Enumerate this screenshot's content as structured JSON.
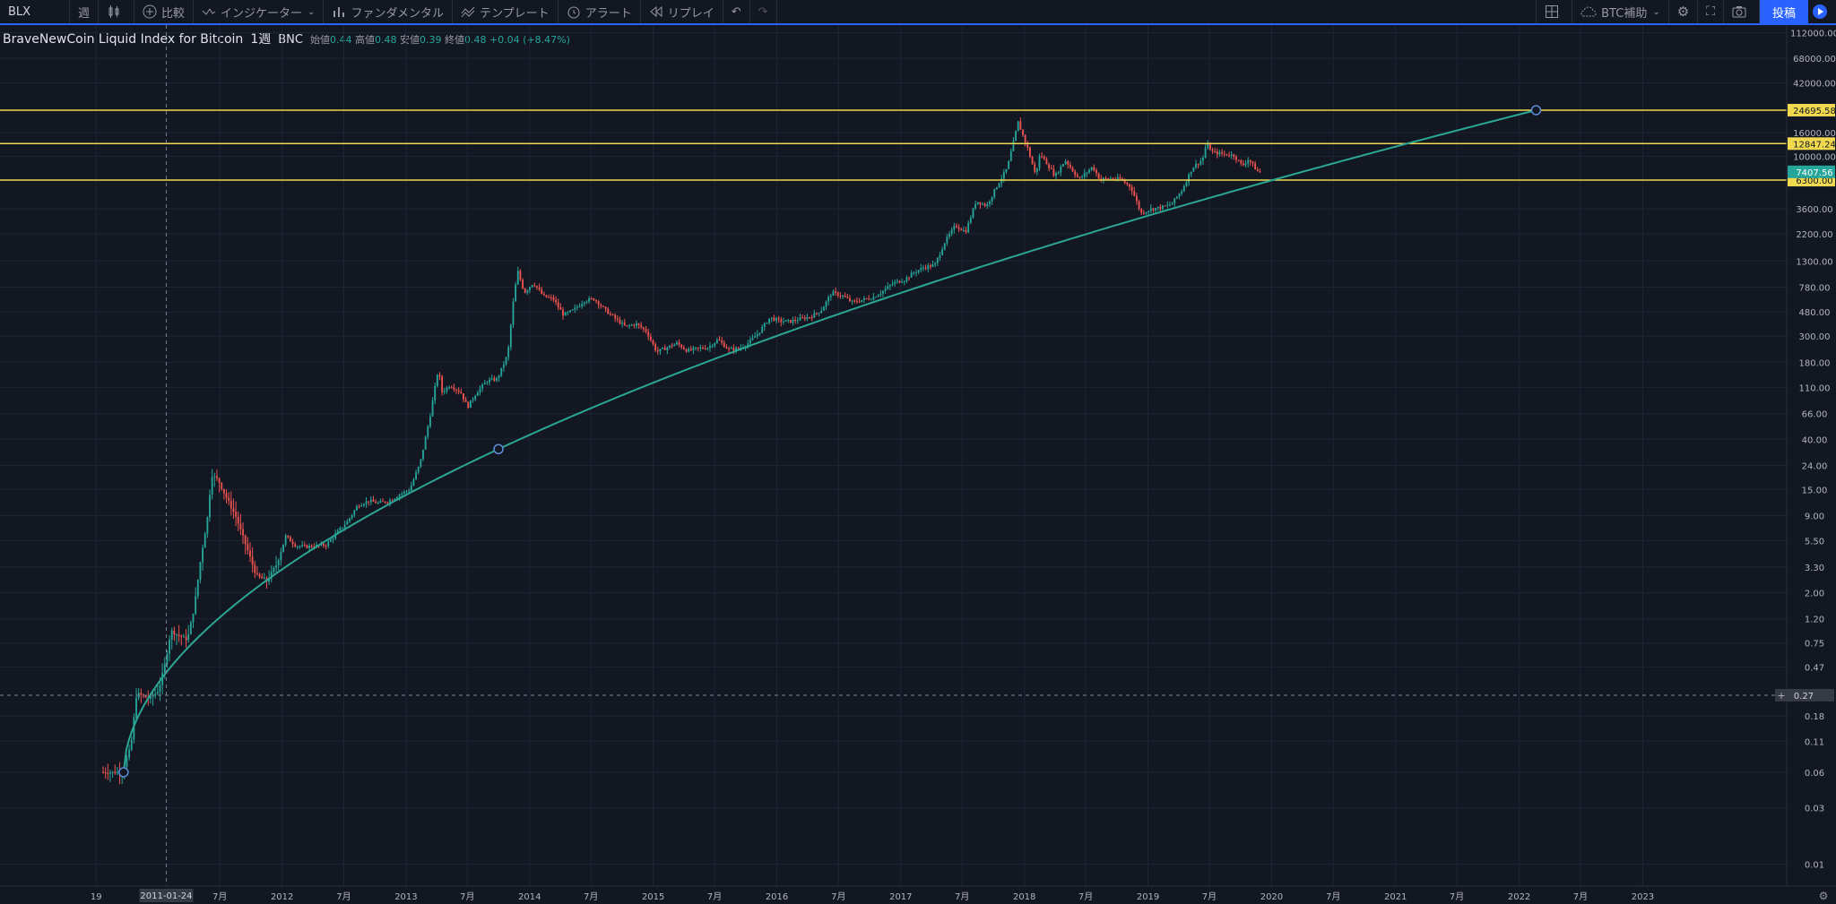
{
  "toolbar": {
    "symbol": "BLX",
    "interval": "週",
    "compare": "比較",
    "indicators": "インジケーター",
    "fundamentals": "ファンダメンタル",
    "templates": "テンプレート",
    "alert": "アラート",
    "replay": "リプレイ",
    "layout_name": "BTC補助",
    "post": "投稿"
  },
  "legend": {
    "title": "BraveNewCoin Liquid Index for Bitcoin",
    "interval": "1週",
    "exchange": "BNC",
    "open_label": "始値",
    "open": "0.44",
    "high_label": "高値",
    "high": "0.48",
    "low_label": "安値",
    "low": "0.39",
    "close_label": "終値",
    "close": "0.48",
    "change": "+0.04 (+8.47%)"
  },
  "colors": {
    "background": "#131722",
    "grid": "#1f2433",
    "up": "#26a69a",
    "down": "#ef5350",
    "trendline": "#2aa693",
    "hline": "#f0d94f",
    "accent": "#2962ff"
  },
  "chart_data": {
    "type": "candlestick",
    "y_scale": "log",
    "ylim": [
      0.0065,
      130000
    ],
    "xlim": [
      "2009-09-20",
      "2024-03-01"
    ],
    "price_axis_ticks": [
      "112000.00",
      "68000.00",
      "42000.00",
      "16000.00",
      "10000.00",
      "3600.00",
      "2200.00",
      "1300.00",
      "780.00",
      "480.00",
      "300.00",
      "180.00",
      "110.00",
      "66.00",
      "40.00",
      "24.00",
      "15.00",
      "9.00",
      "5.50",
      "3.30",
      "2.00",
      "1.20",
      "0.75",
      "0.47",
      "0.18",
      "0.11",
      "0.06",
      "0.03",
      "0.01"
    ],
    "time_axis_labels": [
      {
        "date": "2010-07-01",
        "label": "19"
      },
      {
        "date": "2011-07-01",
        "label": "7月"
      },
      {
        "date": "2012-01-01",
        "label": "2012"
      },
      {
        "date": "2012-07-01",
        "label": "7月"
      },
      {
        "date": "2013-01-01",
        "label": "2013"
      },
      {
        "date": "2013-07-01",
        "label": "7月"
      },
      {
        "date": "2014-01-01",
        "label": "2014"
      },
      {
        "date": "2014-07-01",
        "label": "7月"
      },
      {
        "date": "2015-01-01",
        "label": "2015"
      },
      {
        "date": "2015-07-01",
        "label": "7月"
      },
      {
        "date": "2016-01-01",
        "label": "2016"
      },
      {
        "date": "2016-07-01",
        "label": "7月"
      },
      {
        "date": "2017-01-01",
        "label": "2017"
      },
      {
        "date": "2017-07-01",
        "label": "7月"
      },
      {
        "date": "2018-01-01",
        "label": "2018"
      },
      {
        "date": "2018-07-01",
        "label": "7月"
      },
      {
        "date": "2019-01-01",
        "label": "2019"
      },
      {
        "date": "2019-07-01",
        "label": "7月"
      },
      {
        "date": "2020-01-01",
        "label": "2020"
      },
      {
        "date": "2020-07-01",
        "label": "7月"
      },
      {
        "date": "2021-01-01",
        "label": "2021"
      },
      {
        "date": "2021-07-01",
        "label": "7月"
      },
      {
        "date": "2022-01-01",
        "label": "2022"
      },
      {
        "date": "2022-07-01",
        "label": "7月"
      },
      {
        "date": "2023-01-01",
        "label": "2023"
      }
    ],
    "price_path": [
      [
        "2010-07-18",
        0.06
      ],
      [
        "2010-08-20",
        0.06
      ],
      [
        "2010-09-20",
        0.06
      ],
      [
        "2010-10-15",
        0.1
      ],
      [
        "2010-11-01",
        0.28
      ],
      [
        "2010-12-10",
        0.25
      ],
      [
        "2011-01-05",
        0.3
      ],
      [
        "2011-01-24",
        0.5
      ],
      [
        "2011-02-10",
        0.95
      ],
      [
        "2011-03-10",
        0.85
      ],
      [
        "2011-03-31",
        0.8
      ],
      [
        "2011-04-20",
        1.5
      ],
      [
        "2011-05-10",
        4.0
      ],
      [
        "2011-05-30",
        9.0
      ],
      [
        "2011-06-10",
        20.0
      ],
      [
        "2011-06-30",
        18.0
      ],
      [
        "2011-07-20",
        13.5
      ],
      [
        "2011-08-20",
        9.0
      ],
      [
        "2011-09-20",
        5.0
      ],
      [
        "2011-10-20",
        2.8
      ],
      [
        "2011-11-20",
        2.5
      ],
      [
        "2011-12-20",
        3.5
      ],
      [
        "2012-01-15",
        6.0
      ],
      [
        "2012-02-15",
        5.0
      ],
      [
        "2012-03-15",
        4.9
      ],
      [
        "2012-04-15",
        5.0
      ],
      [
        "2012-05-15",
        5.1
      ],
      [
        "2012-06-15",
        6.5
      ],
      [
        "2012-07-15",
        8.0
      ],
      [
        "2012-08-15",
        11.0
      ],
      [
        "2012-09-15",
        12.0
      ],
      [
        "2012-10-15",
        11.5
      ],
      [
        "2012-11-15",
        12.0
      ],
      [
        "2012-12-15",
        13.5
      ],
      [
        "2013-01-15",
        15.0
      ],
      [
        "2013-02-15",
        25.0
      ],
      [
        "2013-03-15",
        60.0
      ],
      [
        "2013-04-10",
        160.0
      ],
      [
        "2013-04-20",
        100.0
      ],
      [
        "2013-05-15",
        115.0
      ],
      [
        "2013-06-15",
        100.0
      ],
      [
        "2013-07-05",
        75.0
      ],
      [
        "2013-08-01",
        100.0
      ],
      [
        "2013-09-01",
        125.0
      ],
      [
        "2013-10-01",
        130.0
      ],
      [
        "2013-11-01",
        210.0
      ],
      [
        "2013-11-20",
        700.0
      ],
      [
        "2013-12-01",
        1050.0
      ],
      [
        "2013-12-20",
        700.0
      ],
      [
        "2014-01-15",
        850.0
      ],
      [
        "2014-02-15",
        650.0
      ],
      [
        "2014-03-15",
        620.0
      ],
      [
        "2014-04-15",
        450.0
      ],
      [
        "2014-05-15",
        500.0
      ],
      [
        "2014-06-15",
        600.0
      ],
      [
        "2014-07-15",
        620.0
      ],
      [
        "2014-08-15",
        500.0
      ],
      [
        "2014-09-15",
        420.0
      ],
      [
        "2014-10-15",
        360.0
      ],
      [
        "2014-11-15",
        380.0
      ],
      [
        "2014-12-15",
        330.0
      ],
      [
        "2015-01-15",
        220.0
      ],
      [
        "2015-02-15",
        240.0
      ],
      [
        "2015-03-15",
        260.0
      ],
      [
        "2015-04-15",
        225.0
      ],
      [
        "2015-05-15",
        235.0
      ],
      [
        "2015-06-15",
        240.0
      ],
      [
        "2015-07-15",
        280.0
      ],
      [
        "2015-08-15",
        230.0
      ],
      [
        "2015-09-15",
        235.0
      ],
      [
        "2015-10-15",
        265.0
      ],
      [
        "2015-11-15",
        330.0
      ],
      [
        "2015-12-15",
        430.0
      ],
      [
        "2016-01-15",
        400.0
      ],
      [
        "2016-02-15",
        400.0
      ],
      [
        "2016-03-15",
        420.0
      ],
      [
        "2016-04-15",
        440.0
      ],
      [
        "2016-05-15",
        500.0
      ],
      [
        "2016-06-15",
        700.0
      ],
      [
        "2016-07-15",
        660.0
      ],
      [
        "2016-08-15",
        580.0
      ],
      [
        "2016-09-15",
        610.0
      ],
      [
        "2016-10-15",
        640.0
      ],
      [
        "2016-11-15",
        730.0
      ],
      [
        "2016-12-15",
        850.0
      ],
      [
        "2017-01-15",
        900.0
      ],
      [
        "2017-02-15",
        1050.0
      ],
      [
        "2017-03-15",
        1150.0
      ],
      [
        "2017-04-15",
        1200.0
      ],
      [
        "2017-05-15",
        1900.0
      ],
      [
        "2017-06-15",
        2600.0
      ],
      [
        "2017-07-15",
        2300.0
      ],
      [
        "2017-08-15",
        4200.0
      ],
      [
        "2017-09-15",
        3800.0
      ],
      [
        "2017-10-15",
        5600.0
      ],
      [
        "2017-11-15",
        8000.0
      ],
      [
        "2017-12-17",
        19500.0
      ],
      [
        "2018-01-15",
        11500.0
      ],
      [
        "2018-02-06",
        7000.0
      ],
      [
        "2018-02-20",
        10500.0
      ],
      [
        "2018-03-15",
        8500.0
      ],
      [
        "2018-04-05",
        6800.0
      ],
      [
        "2018-05-05",
        9300.0
      ],
      [
        "2018-06-15",
        6400.0
      ],
      [
        "2018-07-25",
        8200.0
      ],
      [
        "2018-08-15",
        6400.0
      ],
      [
        "2018-09-15",
        6500.0
      ],
      [
        "2018-10-15",
        6400.0
      ],
      [
        "2018-11-15",
        5500.0
      ],
      [
        "2018-12-15",
        3300.0
      ],
      [
        "2019-01-15",
        3600.0
      ],
      [
        "2019-02-15",
        3700.0
      ],
      [
        "2019-03-15",
        3950.0
      ],
      [
        "2019-04-15",
        5200.0
      ],
      [
        "2019-05-15",
        8000.0
      ],
      [
        "2019-06-15",
        9500.0
      ],
      [
        "2019-06-26",
        12800.0
      ],
      [
        "2019-07-15",
        10800.0
      ],
      [
        "2019-08-15",
        10500.0
      ],
      [
        "2019-09-15",
        10200.0
      ],
      [
        "2019-10-10",
        8300.0
      ],
      [
        "2019-10-28",
        9500.0
      ],
      [
        "2019-11-25",
        7400.0
      ]
    ],
    "trendline": {
      "color": "#2aa693",
      "anchors": [
        {
          "date": "2010-09-20",
          "value": 0.06
        },
        {
          "date": "2013-10-01",
          "value": 33.0
        },
        {
          "date": "2022-02-20",
          "value": 24695.58
        }
      ]
    },
    "horizontal_lines": [
      {
        "value": 24695.58,
        "label": "24695.58"
      },
      {
        "value": 12847.24,
        "label": "12847.24"
      },
      {
        "value": 6300.0,
        "label": "6300.00"
      }
    ],
    "last_price": {
      "value": 7407.56,
      "label": "7407.56"
    },
    "crosshair": {
      "date": "2011-01-24",
      "value": 0.27,
      "price_label": "0.27",
      "time_label": "2011-01-24"
    }
  }
}
